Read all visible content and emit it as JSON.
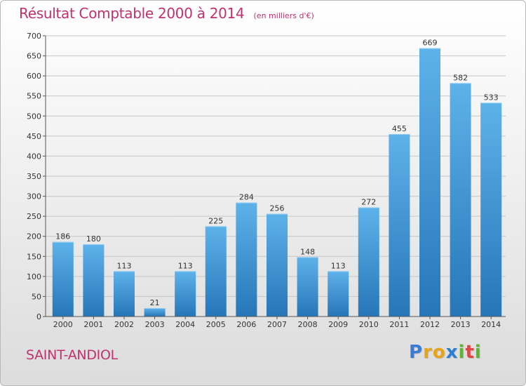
{
  "header": {
    "title": "Résultat Comptable 2000 à 2014",
    "subtitle": "(en milliers d'€)"
  },
  "commune": "SAINT-ANDIOL",
  "logo": {
    "text": "Proxiti",
    "letters": [
      {
        "ch": "P",
        "color": "#3a7bd5"
      },
      {
        "ch": "r",
        "color": "#e8a317"
      },
      {
        "ch": "o",
        "color": "#e8a317"
      },
      {
        "ch": "x",
        "color": "#2a7fd4"
      },
      {
        "ch": "i",
        "color": "#5bb533"
      },
      {
        "ch": "t",
        "color": "#e04646"
      },
      {
        "ch": "i",
        "color": "#5bb533"
      }
    ]
  },
  "colors": {
    "bar_top": "#5eb2ea",
    "bar_bottom": "#2676b8",
    "grid": "#c6c6c6",
    "title": "#c0326e"
  },
  "chart_data": {
    "type": "bar",
    "title": "Résultat Comptable 2000 à 2014",
    "subtitle": "(en milliers d'€)",
    "categories": [
      "2000",
      "2001",
      "2002",
      "2003",
      "2004",
      "2005",
      "2006",
      "2007",
      "2008",
      "2009",
      "2010",
      "2011",
      "2012",
      "2013",
      "2014"
    ],
    "values": [
      186,
      180,
      113,
      21,
      113,
      225,
      284,
      256,
      148,
      113,
      272,
      455,
      669,
      582,
      533
    ],
    "ylim": [
      0,
      700
    ],
    "yticks": [
      0,
      50,
      100,
      150,
      200,
      250,
      300,
      350,
      400,
      450,
      500,
      550,
      600,
      650,
      700
    ],
    "grid": true,
    "data_labels": true
  }
}
